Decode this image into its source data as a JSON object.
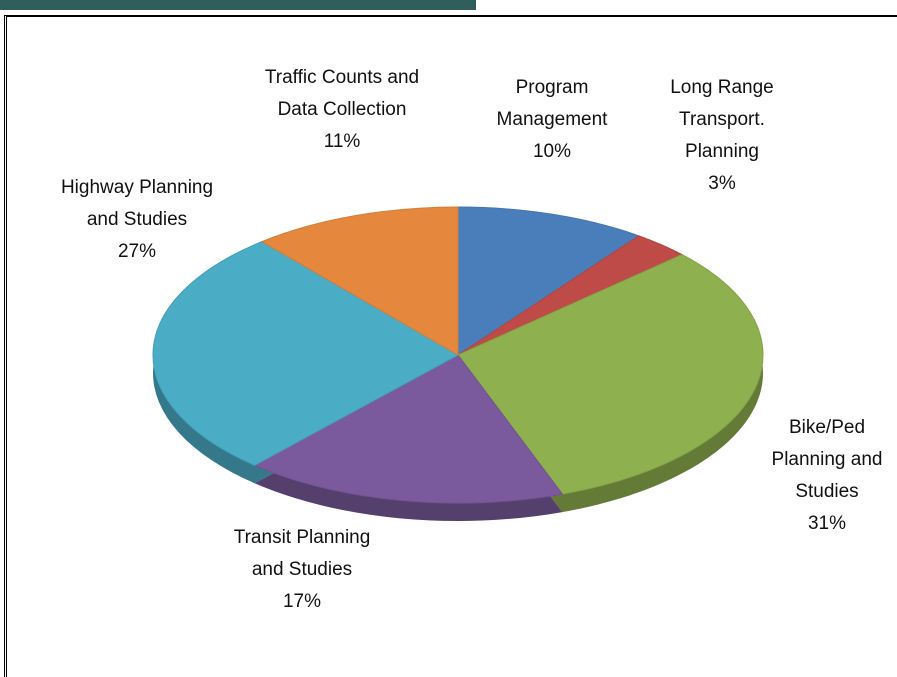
{
  "chart_data": {
    "type": "pie",
    "categories": [
      "Program Management",
      "Long Range Transport. Planning",
      "Bike/Ped Planning and Studies",
      "Transit Planning and Studies",
      "Highway Planning and Studies",
      "Traffic Counts and Data Collection"
    ],
    "values": [
      10,
      3,
      31,
      17,
      27,
      11
    ],
    "value_labels": [
      "10%",
      "3%",
      "31%",
      "17%",
      "27%",
      "11%"
    ],
    "colors": [
      "#4a7ebb",
      "#be4b48",
      "#8fb04f",
      "#7a5a9c",
      "#4bacc6",
      "#e5883e"
    ]
  }
}
